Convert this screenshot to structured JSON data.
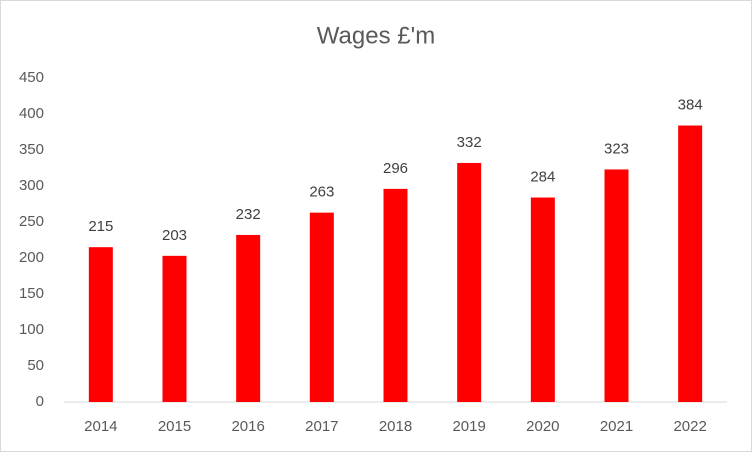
{
  "chart_data": {
    "type": "bar",
    "title": "Wages £'m",
    "categories": [
      "2014",
      "2015",
      "2016",
      "2017",
      "2018",
      "2019",
      "2020",
      "2021",
      "2022"
    ],
    "values": [
      215,
      203,
      232,
      263,
      296,
      332,
      284,
      323,
      384
    ],
    "color": "#ff0000",
    "ylim": [
      0,
      450
    ],
    "yticks": [
      0,
      50,
      100,
      150,
      200,
      250,
      300,
      350,
      400,
      450
    ],
    "grid": false
  }
}
